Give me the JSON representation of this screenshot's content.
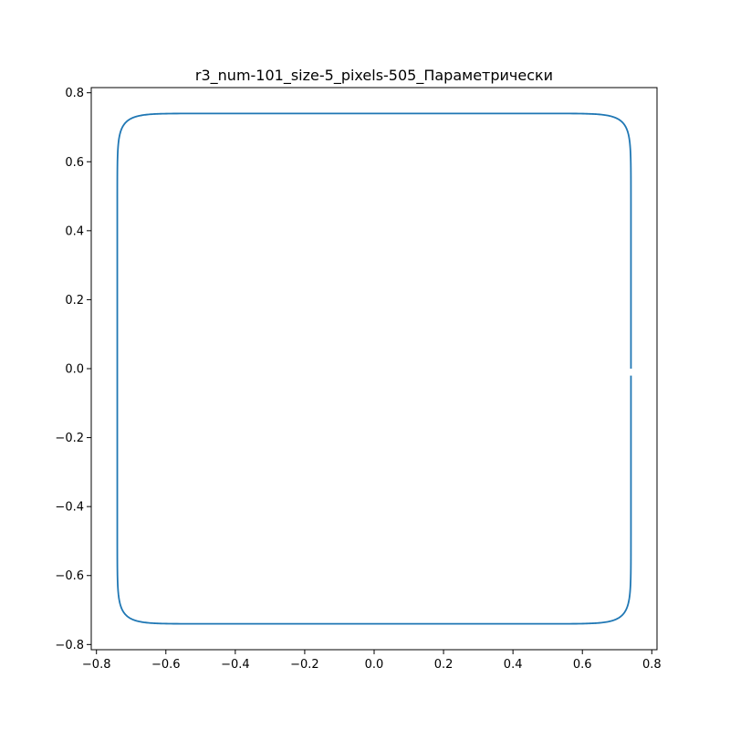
{
  "chart_data": {
    "type": "line",
    "title": "r3_num-101_size-5_pixels-505_Параметрически",
    "xlabel": "",
    "ylabel": "",
    "xlim": [
      -0.815,
      0.815
    ],
    "ylim": [
      -0.815,
      0.815
    ],
    "grid": false,
    "legend": "none",
    "x_ticks": [
      -0.8,
      -0.6,
      -0.4,
      -0.2,
      0.0,
      0.2,
      0.4,
      0.6,
      0.8
    ],
    "x_tick_labels": [
      "−0.8",
      "−0.6",
      "−0.4",
      "−0.2",
      "0.0",
      "0.2",
      "0.4",
      "0.6",
      "0.8"
    ],
    "y_ticks": [
      -0.8,
      -0.6,
      -0.4,
      -0.2,
      0.0,
      0.2,
      0.4,
      0.6,
      0.8
    ],
    "y_tick_labels": [
      "−0.8",
      "−0.6",
      "−0.4",
      "−0.2",
      "0.0",
      "0.2",
      "0.4",
      "0.6",
      "0.8"
    ],
    "series": [
      {
        "color": "#1f77b4",
        "curve": "superellipse",
        "radius": 0.74,
        "exponent": 0.1,
        "samples": 505
      }
    ]
  }
}
